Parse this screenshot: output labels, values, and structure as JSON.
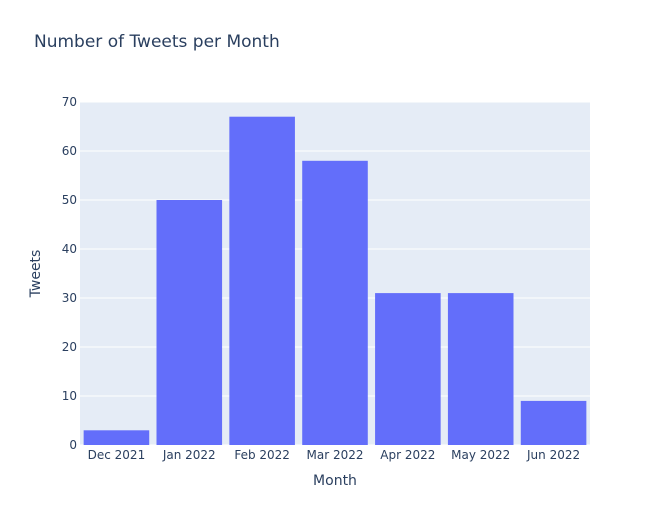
{
  "chart_data": {
    "type": "bar",
    "title": "Number of Tweets per Month",
    "xlabel": "Month",
    "ylabel": "Tweets",
    "categories": [
      "Dec 2021",
      "Jan 2022",
      "Feb 2022",
      "Mar 2022",
      "Apr 2022",
      "May 2022",
      "Jun 2022"
    ],
    "values": [
      3,
      50,
      67,
      58,
      31,
      31,
      9
    ],
    "ylim": [
      0,
      70
    ],
    "yticks": [
      0,
      10,
      20,
      30,
      40,
      50,
      60,
      70
    ],
    "grid": true,
    "colors": {
      "bar": "#636efa",
      "plot_bg": "#e5ecf6",
      "grid": "#ffffff",
      "text": "#2a3f5f"
    }
  }
}
